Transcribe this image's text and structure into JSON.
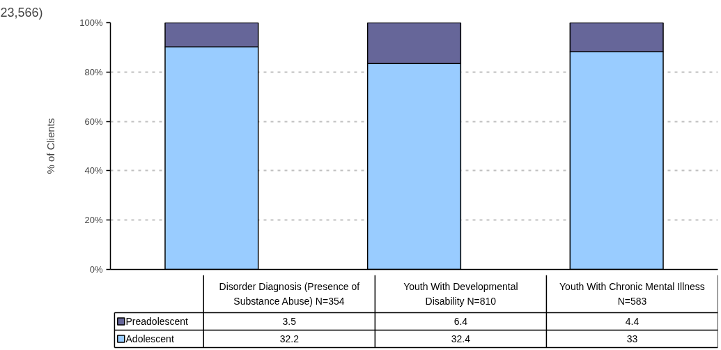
{
  "chart_data": [
    {
      "type": "bar",
      "title": "23,566)",
      "ylabel": "% of Clients",
      "categories": [
        null,
        null,
        null
      ],
      "stacked": true,
      "series": [
        {
          "color": "#99ccff",
          "values": [
            90.2,
            83.5,
            88.2
          ]
        },
        {
          "color": "#666699",
          "values": [
            9.8,
            16.5,
            11.8
          ]
        }
      ],
      "ylim": [
        0,
        100
      ],
      "yticks": [
        {
          "value": 0,
          "label": "0%"
        },
        {
          "value": 20,
          "label": "20%"
        },
        {
          "value": 40,
          "label": "40%"
        },
        {
          "value": 60,
          "label": "60%"
        },
        {
          "value": 80,
          "label": "80%"
        },
        {
          "value": 100,
          "label": "100%"
        }
      ],
      "grid": "y"
    },
    {
      "type": "other",
      "categories": [
        "Disorder Diagnosis (Presence of Substance Abuse) N=354",
        "Youth With Developmental Disability N=810",
        "Youth With Chronic Mental Illness N=583"
      ],
      "series": [
        {
          "name": "Preadolescent",
          "color": "#666699",
          "values": [
            3.5,
            6.4,
            4.4
          ]
        },
        {
          "name": "Adolescent",
          "color": "#99ccff",
          "values": [
            32.2,
            32.4,
            33
          ]
        }
      ],
      "data_labels": true,
      "legend": "left"
    }
  ]
}
